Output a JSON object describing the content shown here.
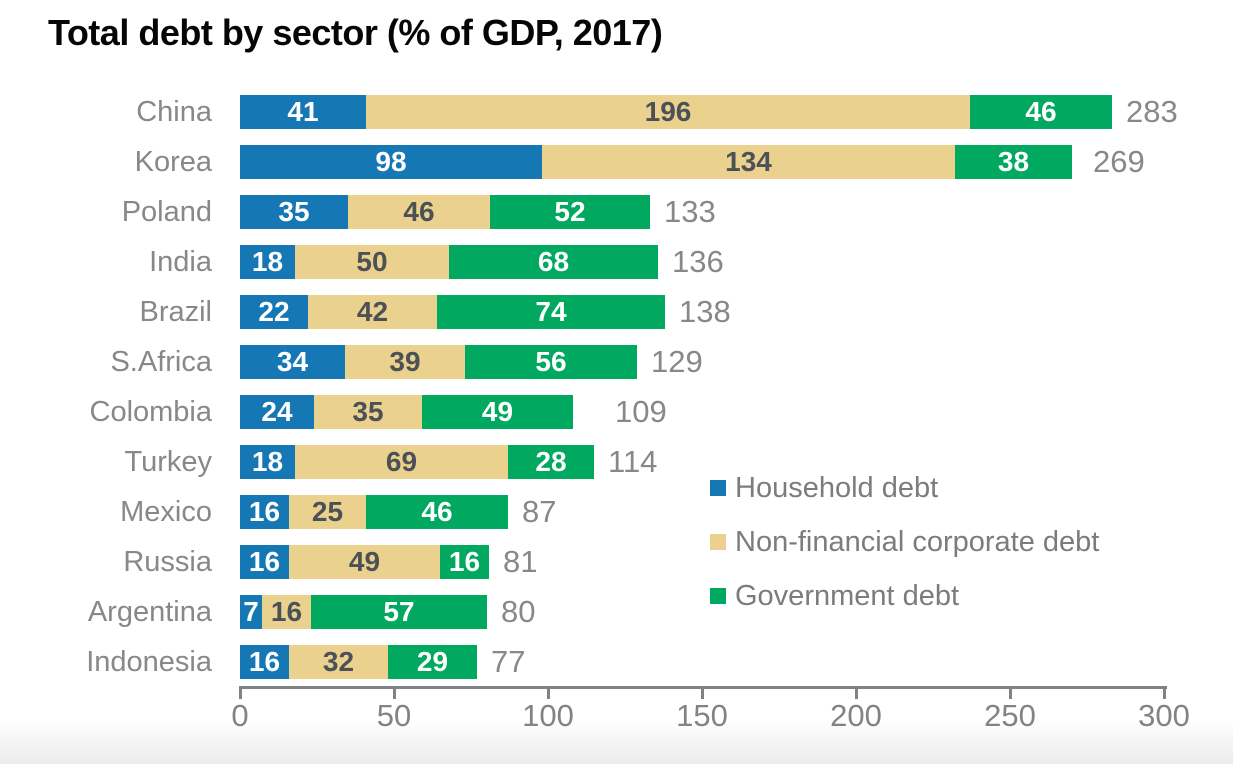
{
  "chart_data": {
    "type": "bar",
    "variant": "horizontal-stacked",
    "title": "Total debt by sector (% of GDP, 2017)",
    "categories": [
      "China",
      "Korea",
      "Poland",
      "India",
      "Brazil",
      "S.Africa",
      "Colombia",
      "Turkey",
      "Mexico",
      "Russia",
      "Argentina",
      "Indonesia"
    ],
    "series": [
      {
        "name": "Household debt",
        "color": "#1577b4",
        "label_color": "#ffffff",
        "values": [
          41,
          98,
          35,
          18,
          22,
          34,
          24,
          18,
          16,
          16,
          7,
          16
        ]
      },
      {
        "name": "Non-financial corporate debt",
        "color": "#ead18d",
        "label_color": "#4c5157",
        "values": [
          196,
          134,
          46,
          50,
          42,
          39,
          35,
          69,
          25,
          49,
          16,
          32
        ]
      },
      {
        "name": "Government debt",
        "color": "#00a860",
        "label_color": "#ffffff",
        "values": [
          46,
          38,
          52,
          68,
          74,
          56,
          49,
          28,
          46,
          16,
          57,
          29
        ]
      }
    ],
    "totals": [
      283,
      269,
      133,
      136,
      138,
      129,
      109,
      114,
      87,
      81,
      80,
      77
    ],
    "x_axis": {
      "ticks": [
        0,
        50,
        100,
        150,
        200,
        250,
        300
      ],
      "min": 0,
      "max": 300
    },
    "legend_position": "right-middle",
    "grid": false,
    "text_colors": {
      "category": "#87888a",
      "total": "#87888a",
      "tick": "#828386",
      "legend": "#7b7c7e",
      "title": "#060606"
    }
  }
}
